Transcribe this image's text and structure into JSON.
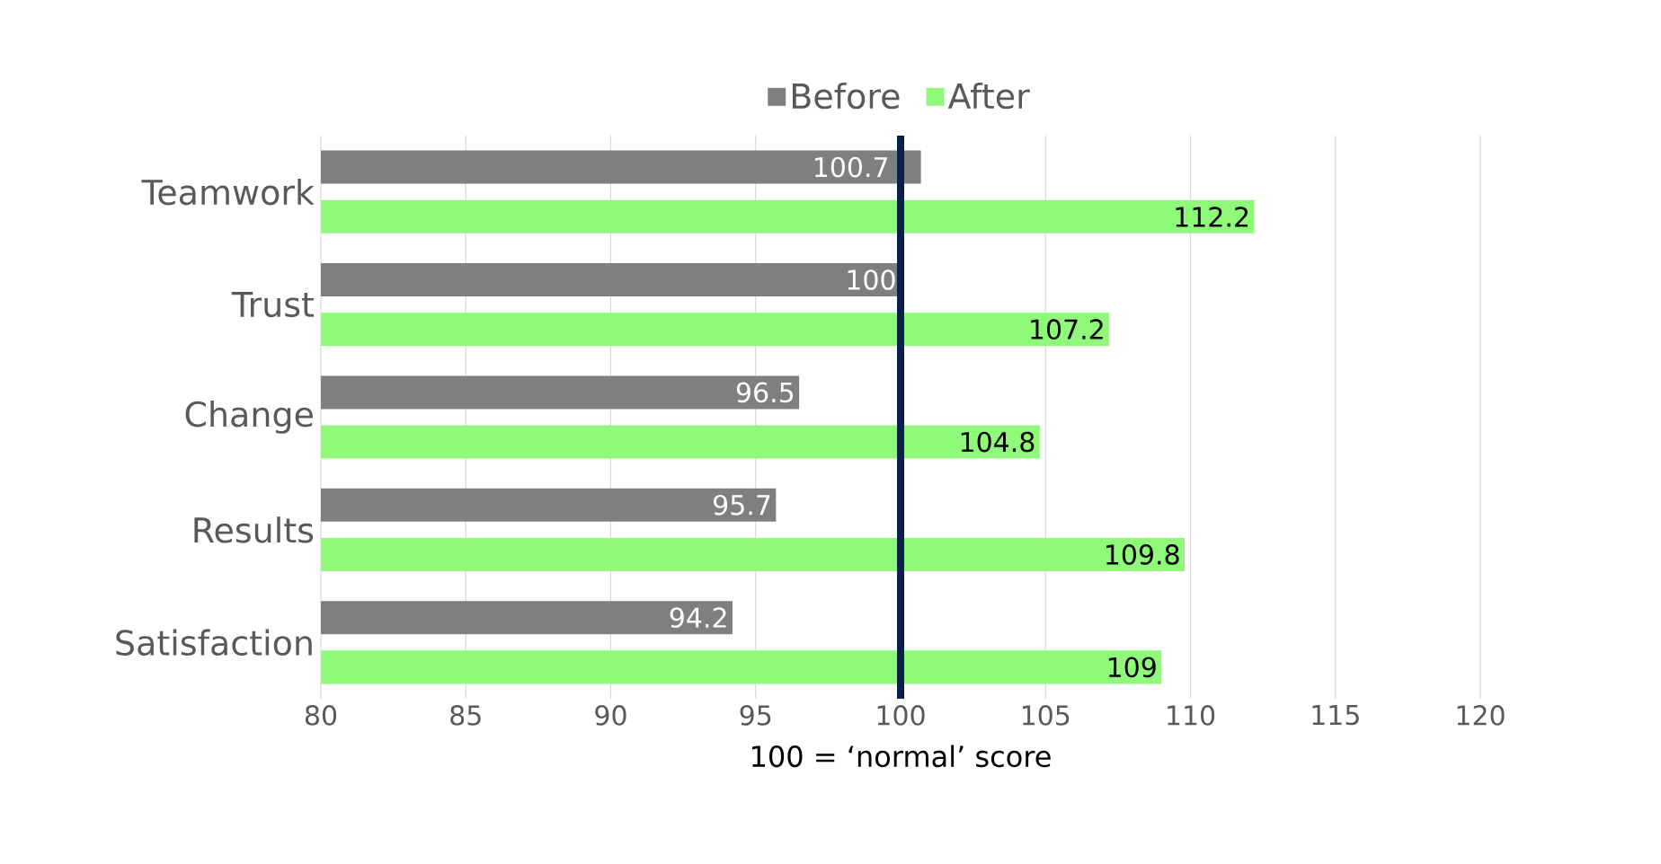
{
  "chart_data": {
    "type": "bar",
    "orientation": "horizontal",
    "categories": [
      "Teamwork",
      "Trust",
      "Change",
      "Results",
      "Satisfaction"
    ],
    "series": [
      {
        "name": "Before",
        "color": "#7f7f7f",
        "values": [
          100.7,
          100,
          96.5,
          95.7,
          94.2
        ]
      },
      {
        "name": "After",
        "color": "#8ffa7a",
        "values": [
          112.2,
          107.2,
          104.8,
          109.8,
          109
        ]
      }
    ],
    "xlabel": "100 = ‘normal’ score",
    "xlim": [
      80,
      120
    ],
    "xticks": [
      80,
      85,
      90,
      95,
      100,
      105,
      110,
      115,
      120
    ],
    "ref_lines": [
      {
        "axis": "x",
        "value": 100,
        "color": "#0b1f4d"
      }
    ],
    "grid": "x",
    "legend": "top",
    "data_labels": true
  }
}
